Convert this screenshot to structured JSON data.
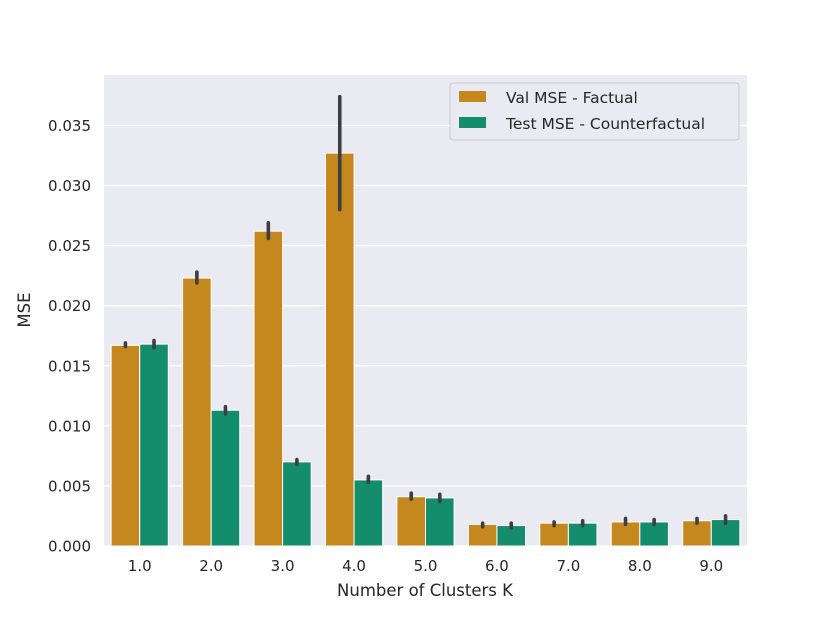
{
  "chart_data": {
    "type": "bar",
    "title": "",
    "xlabel": "Number of Clusters K",
    "ylabel": "MSE",
    "categories": [
      "1.0",
      "2.0",
      "3.0",
      "4.0",
      "5.0",
      "6.0",
      "7.0",
      "8.0",
      "9.0"
    ],
    "ylim": [
      0,
      0.0392
    ],
    "yticks": [
      "0.000",
      "0.005",
      "0.010",
      "0.015",
      "0.020",
      "0.025",
      "0.030",
      "0.035"
    ],
    "grid": true,
    "legend_position": "top-right",
    "series": [
      {
        "name": "Val MSE - Factual",
        "color": "#c5881f",
        "values": [
          0.0167,
          0.0223,
          0.0262,
          0.0327,
          0.0041,
          0.0018,
          0.0019,
          0.002,
          0.0021
        ],
        "err_low": [
          0.0166,
          0.0219,
          0.0256,
          0.028,
          0.0039,
          0.0016,
          0.0017,
          0.0018,
          0.0019
        ],
        "err_high": [
          0.0169,
          0.0228,
          0.0269,
          0.0374,
          0.0044,
          0.0019,
          0.002,
          0.0023,
          0.0023
        ]
      },
      {
        "name": "Test MSE - Counterfactual",
        "color": "#138d6b",
        "values": [
          0.0168,
          0.0113,
          0.007,
          0.0055,
          0.004,
          0.0017,
          0.0019,
          0.002,
          0.0022
        ],
        "err_low": [
          0.0165,
          0.011,
          0.0068,
          0.0053,
          0.0037,
          0.0015,
          0.0017,
          0.0018,
          0.0019
        ],
        "err_high": [
          0.0171,
          0.0116,
          0.0072,
          0.0058,
          0.0043,
          0.0019,
          0.0021,
          0.0022,
          0.0025
        ]
      }
    ]
  }
}
